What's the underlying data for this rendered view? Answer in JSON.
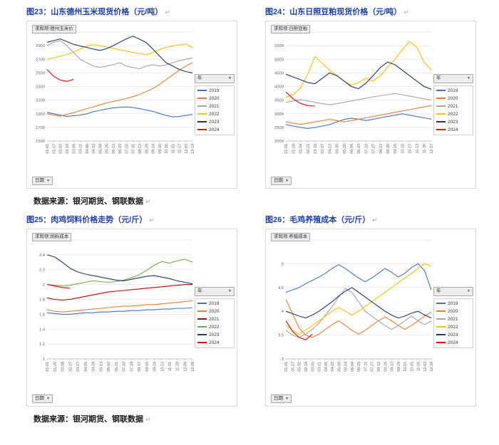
{
  "colors": {
    "caption": "#1e3fa8",
    "source_text": "#1a1a1a",
    "chart_border": "#d9d9d9"
  },
  "return_mark": "↵",
  "figures": [
    {
      "caption": "图23：山东德州玉米现货价格（元/吨）"
    },
    {
      "caption": "图24：山东日照豆粕现货价格（元/吨）"
    },
    {
      "caption": "图25：肉鸡饲料价格走势（元/斤）"
    },
    {
      "caption": "图26：毛鸡养殖成本（元/斤）"
    }
  ],
  "source_notes": [
    "数据来源：银河期货、钢联数据",
    "数据来源：银河期货、钢联数据"
  ],
  "chart_data": [
    {
      "type": "line",
      "title": "求和项:德州玉米价",
      "legend_title": "年",
      "xfield": "日期",
      "legend_position": "right",
      "grid": true,
      "ylim": [
        1500,
        3100
      ],
      "yticks": [
        1500,
        1700,
        1900,
        2100,
        2300,
        2500,
        2700,
        2900,
        3100
      ],
      "categories": [
        "01-01",
        "01-17",
        "02-02",
        "02-18",
        "03-05",
        "03-21",
        "04-06",
        "04-22",
        "05-08",
        "05-26",
        "06-13",
        "06-29",
        "07-15",
        "07-31",
        "08-13",
        "08-29",
        "09-14",
        "09-30",
        "10-16",
        "11-01",
        "11-17",
        "12-03",
        "12-19"
      ],
      "series": [
        {
          "name": "2019",
          "color": "#4472C4",
          "values": [
            1920,
            1900,
            1880,
            1860,
            1870,
            1880,
            1900,
            1930,
            1950,
            1970,
            1985,
            1995,
            2000,
            1990,
            1975,
            1955,
            1935,
            1905,
            1875,
            1855,
            1860,
            1875,
            1890
          ]
        },
        {
          "name": "2020",
          "color": "#ED7D31",
          "values": [
            1900,
            1880,
            1865,
            1890,
            1915,
            1945,
            1975,
            2000,
            2030,
            2060,
            2080,
            2100,
            2125,
            2150,
            2185,
            2225,
            2270,
            2330,
            2400,
            2470,
            2540,
            2600,
            2650
          ]
        },
        {
          "name": "2021",
          "color": "#A5A5A5",
          "values": [
            2900,
            2950,
            2975,
            2900,
            2800,
            2700,
            2650,
            2600,
            2580,
            2600,
            2620,
            2650,
            2600,
            2580,
            2560,
            2600,
            2620,
            2600,
            2620,
            2650,
            2680,
            2700,
            2720
          ]
        },
        {
          "name": "2022",
          "color": "#FFC000",
          "values": [
            2700,
            2720,
            2745,
            2770,
            2805,
            2850,
            2895,
            2915,
            2900,
            2880,
            2860,
            2840,
            2820,
            2800,
            2785,
            2765,
            2800,
            2840,
            2875,
            2895,
            2910,
            2925,
            2870
          ]
        },
        {
          "name": "2023",
          "color": "#1F3864",
          "values": [
            2950,
            2975,
            3000,
            2960,
            2920,
            2895,
            2875,
            2850,
            2830,
            2855,
            2900,
            2950,
            3000,
            3040,
            2995,
            2945,
            2850,
            2750,
            2650,
            2600,
            2550,
            2520,
            2500
          ]
        },
        {
          "name": "2024",
          "color": "#FF0000",
          "values": [
            2550,
            2450,
            2395,
            2375,
            2405,
            null,
            null,
            null,
            null,
            null,
            null,
            null,
            null,
            null,
            null,
            null,
            null,
            null,
            null,
            null,
            null,
            null,
            null
          ]
        }
      ]
    },
    {
      "type": "line",
      "title": "求和项:日照豆粕",
      "legend_title": "年",
      "xfield": "日期",
      "legend_position": "right",
      "grid": true,
      "ylim": [
        2000,
        6000
      ],
      "yticks": [
        2000,
        2500,
        3000,
        3500,
        4000,
        4500,
        5000,
        5500,
        6000
      ],
      "categories": [
        "01-01",
        "01-18",
        "02-04",
        "02-21",
        "03-10",
        "03-27",
        "04-13",
        "04-30",
        "05-20",
        "06-06",
        "06-23",
        "07-10",
        "07-27",
        "08-13",
        "08-30",
        "09-16",
        "10-10",
        "10-27",
        "11-13",
        "11-30",
        "12-17"
      ],
      "series": [
        {
          "name": "2019",
          "color": "#4472C4",
          "values": [
            2600,
            2550,
            2500,
            2460,
            2500,
            2550,
            2600,
            2700,
            2790,
            2840,
            2800,
            2750,
            2800,
            2850,
            2900,
            2950,
            3000,
            2950,
            2900,
            2850,
            2800
          ]
        },
        {
          "name": "2020",
          "color": "#ED7D31",
          "values": [
            2700,
            2650,
            2610,
            2650,
            2700,
            2745,
            2795,
            2750,
            2700,
            2750,
            2800,
            2850,
            2900,
            2950,
            3000,
            3050,
            3100,
            3150,
            3200,
            3250,
            3300
          ]
        },
        {
          "name": "2021",
          "color": "#A5A5A5",
          "values": [
            3420,
            3470,
            3520,
            3470,
            3420,
            3370,
            3330,
            3370,
            3420,
            3470,
            3520,
            3570,
            3620,
            3660,
            3700,
            3740,
            3700,
            3650,
            3600,
            3550,
            3500
          ]
        },
        {
          "name": "2022",
          "color": "#FFC000",
          "values": [
            3600,
            3700,
            3950,
            4450,
            5100,
            4850,
            4600,
            4400,
            4200,
            4050,
            4150,
            4300,
            4200,
            4400,
            4700,
            5000,
            5350,
            5650,
            5450,
            4900,
            4600
          ]
        },
        {
          "name": "2023",
          "color": "#1F3864",
          "values": [
            4450,
            4350,
            4250,
            4150,
            4100,
            4300,
            4500,
            4400,
            4200,
            4000,
            3920,
            4120,
            4400,
            4700,
            4900,
            4800,
            4600,
            4400,
            4200,
            4000,
            3900
          ]
        },
        {
          "name": "2024",
          "color": "#FF0000",
          "values": [
            3800,
            3550,
            3380,
            3300,
            3280,
            null,
            null,
            null,
            null,
            null,
            null,
            null,
            null,
            null,
            null,
            null,
            null,
            null,
            null,
            null,
            null
          ]
        }
      ]
    },
    {
      "type": "line",
      "title": "求和项:饲料成本",
      "legend_title": "年",
      "xfield": "日期",
      "legend_position": "right",
      "grid": true,
      "ylim": [
        1,
        2.6
      ],
      "yticks": [
        1,
        1.2,
        1.4,
        1.6,
        1.8,
        2,
        2.2,
        2.4,
        2.6
      ],
      "categories": [
        "01-01",
        "01-20",
        "02-08",
        "02-27",
        "03-17",
        "04-05",
        "04-24",
        "05-14",
        "06-02",
        "06-21",
        "07-10",
        "07-29",
        "08-17",
        "09-05",
        "09-24",
        "10-13",
        "11-01",
        "11-20",
        "12-09",
        "12-28"
      ],
      "series": [
        {
          "name": "2019",
          "color": "#4472C4",
          "values": [
            1.62,
            1.61,
            1.6,
            1.6,
            1.61,
            1.62,
            1.62,
            1.63,
            1.63,
            1.64,
            1.64,
            1.65,
            1.65,
            1.66,
            1.66,
            1.67,
            1.67,
            1.68,
            1.68,
            1.69
          ]
        },
        {
          "name": "2020",
          "color": "#ED7D31",
          "values": [
            1.66,
            1.64,
            1.63,
            1.64,
            1.65,
            1.66,
            1.67,
            1.68,
            1.69,
            1.7,
            1.71,
            1.71,
            1.72,
            1.73,
            1.73,
            1.74,
            1.75,
            1.76,
            1.77,
            1.78
          ]
        },
        {
          "name": "2021",
          "color": "#C00000",
          "values": [
            1.82,
            1.8,
            1.79,
            1.8,
            1.82,
            1.84,
            1.86,
            1.88,
            1.9,
            1.91,
            1.92,
            1.93,
            1.94,
            1.95,
            1.96,
            1.97,
            1.98,
            1.99,
            2.0,
            2.0
          ]
        },
        {
          "name": "2022",
          "color": "#70AD47",
          "values": [
            2.0,
            1.99,
            1.98,
            1.99,
            2.01,
            2.03,
            2.05,
            2.04,
            2.03,
            2.04,
            2.06,
            2.09,
            2.13,
            2.19,
            2.26,
            2.31,
            2.29,
            2.32,
            2.34,
            2.3
          ]
        },
        {
          "name": "2023",
          "color": "#1F3864",
          "values": [
            2.4,
            2.37,
            2.3,
            2.22,
            2.17,
            2.14,
            2.12,
            2.1,
            2.08,
            2.06,
            2.05,
            2.07,
            2.09,
            2.11,
            2.12,
            2.1,
            2.08,
            2.05,
            2.03,
            2.01
          ]
        },
        {
          "name": "2024",
          "color": "#FF0000",
          "values": [
            2.0,
            1.98,
            1.96,
            1.95,
            null,
            null,
            null,
            null,
            null,
            null,
            null,
            null,
            null,
            null,
            null,
            null,
            null,
            null,
            null,
            null
          ]
        }
      ]
    },
    {
      "type": "line",
      "title": "求和项:养殖成本",
      "legend_title": "年",
      "xfield": "日期",
      "legend_position": "right",
      "grid": true,
      "ylim": [
        3,
        5.5
      ],
      "yticks": [
        3,
        3.5,
        4,
        4.5,
        5,
        5.5
      ],
      "categories": [
        "01-01",
        "01-17",
        "02-02",
        "02-18",
        "03-05",
        "03-21",
        "04-06",
        "04-22",
        "05-08",
        "05-24",
        "06-09",
        "06-25",
        "07-11",
        "07-27",
        "08-12",
        "08-28",
        "09-13",
        "09-29",
        "10-15",
        "10-31",
        "11-16",
        "12-02",
        "12-18"
      ],
      "series": [
        {
          "name": "2019",
          "color": "#4472C4",
          "values": [
            4.4,
            4.45,
            4.5,
            4.58,
            4.65,
            4.72,
            4.8,
            4.9,
            4.98,
            4.9,
            4.8,
            4.7,
            4.62,
            4.7,
            4.8,
            4.9,
            4.82,
            4.72,
            4.8,
            4.92,
            5.0,
            4.85,
            4.45
          ]
        },
        {
          "name": "2020",
          "color": "#ED7D31",
          "values": [
            4.25,
            3.95,
            3.65,
            3.5,
            3.45,
            3.52,
            3.62,
            3.72,
            3.8,
            3.7,
            3.6,
            3.52,
            3.6,
            3.7,
            3.8,
            3.88,
            3.8,
            3.7,
            3.62,
            3.7,
            3.8,
            3.9,
            3.98
          ]
        },
        {
          "name": "2021",
          "color": "#A5A5A5",
          "values": [
            3.6,
            3.5,
            3.45,
            3.52,
            3.62,
            3.75,
            3.92,
            4.1,
            4.3,
            4.48,
            4.4,
            4.2,
            4.0,
            3.9,
            3.8,
            3.7,
            3.62,
            3.7,
            3.8,
            3.9,
            3.8,
            3.72,
            3.8
          ]
        },
        {
          "name": "2022",
          "color": "#FFC000",
          "values": [
            3.7,
            3.6,
            3.52,
            3.6,
            3.7,
            3.8,
            3.9,
            4.0,
            4.08,
            4.0,
            3.92,
            4.0,
            4.1,
            4.2,
            4.3,
            4.4,
            4.5,
            4.6,
            4.7,
            4.8,
            4.9,
            5.0,
            4.95
          ]
        },
        {
          "name": "2023",
          "color": "#1F3864",
          "values": [
            4.0,
            3.95,
            3.9,
            3.86,
            3.92,
            4.0,
            4.1,
            4.2,
            4.32,
            4.42,
            4.5,
            4.4,
            4.3,
            4.2,
            4.1,
            4.0,
            3.92,
            3.86,
            3.9,
            3.96,
            4.0,
            3.92,
            3.86
          ]
        },
        {
          "name": "2024",
          "color": "#FF0000",
          "values": [
            3.8,
            3.58,
            3.45,
            3.4,
            3.52,
            null,
            null,
            null,
            null,
            null,
            null,
            null,
            null,
            null,
            null,
            null,
            null,
            null,
            null,
            null,
            null,
            null,
            null
          ]
        }
      ]
    }
  ]
}
